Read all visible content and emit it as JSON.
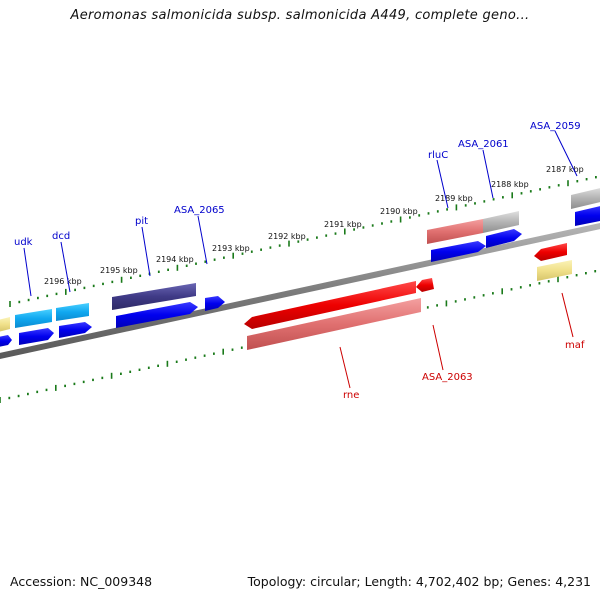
{
  "title": "Aeromonas salmonicida subsp. salmonicida A449, complete geno...",
  "footer": {
    "accession": "Accession: NC_009348",
    "topology": "Topology: circular; Length: 4,702,402 bp; Genes: 4,231"
  },
  "ruler": {
    "kbp_labels": [
      "2196 kbp",
      "2195 kbp",
      "2194 kbp",
      "2193 kbp",
      "2192 kbp",
      "2191 kbp",
      "2190 kbp",
      "2189 kbp",
      "2188 kbp",
      "2187 kbp"
    ]
  },
  "gene_labels": {
    "udk": "udk",
    "dcd": "dcd",
    "pit": "pit",
    "asa2065": "ASA_2065",
    "rluc": "rluC",
    "asa2061": "ASA_2061",
    "asa2059": "ASA_2059",
    "rne": "rne",
    "asa2063": "ASA_2063",
    "maf": "maf"
  },
  "colors": {
    "backbone": "#8a8a8a",
    "tick": "#1a7a1a",
    "cds": "#0000ee",
    "forward_label": "#0000cc",
    "reverse_label": "#cc0000",
    "highlight_red": "#ee0000"
  }
}
